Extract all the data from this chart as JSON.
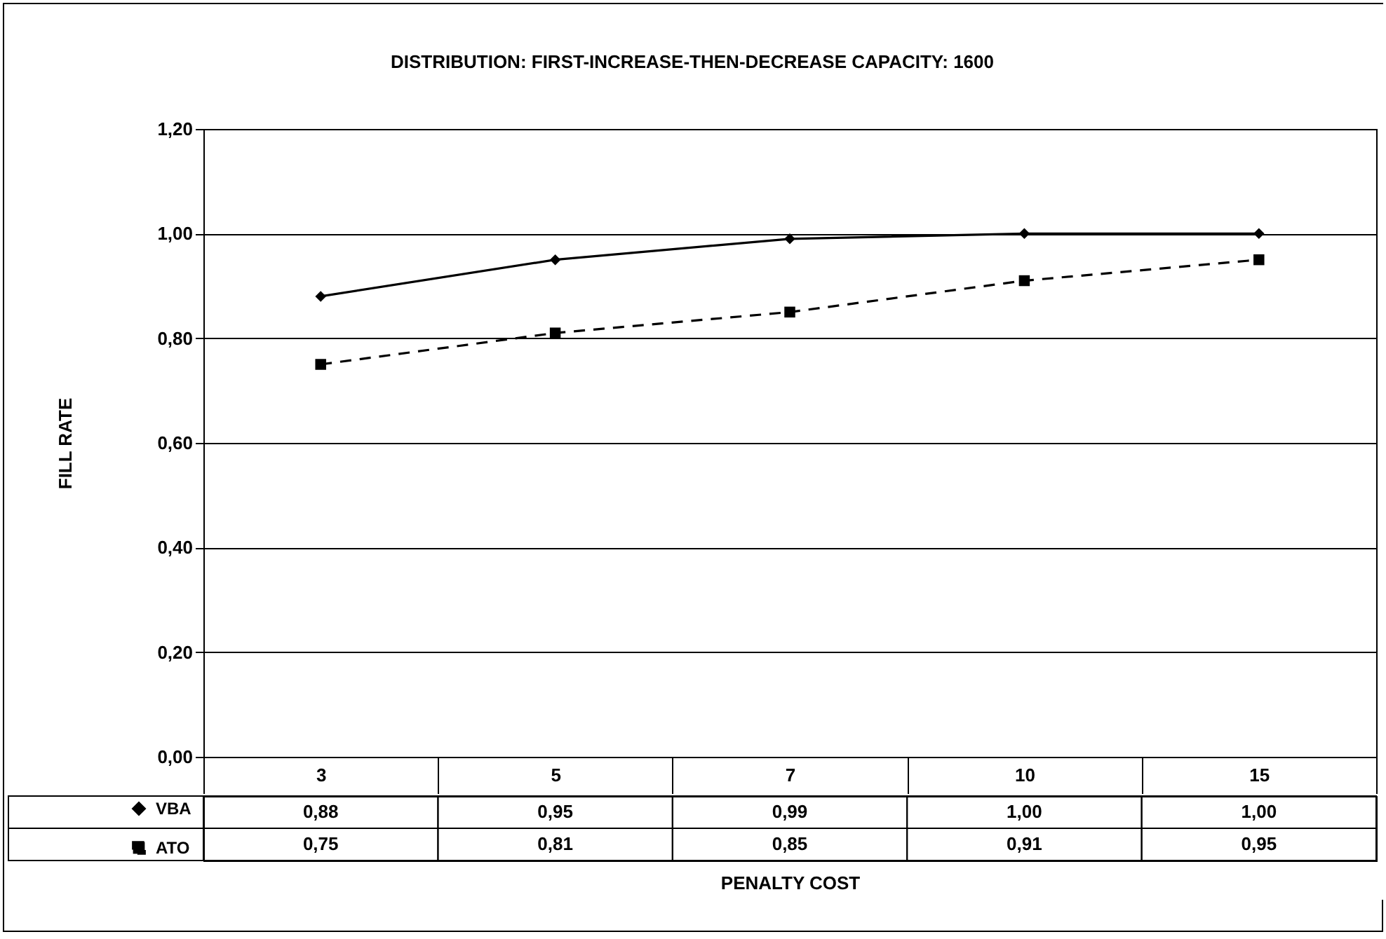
{
  "chart_data": {
    "type": "line",
    "title": "DISTRIBUTION: FIRST-INCREASE-THEN-DECREASE        CAPACITY: 1600",
    "xlabel": "PENALTY COST",
    "ylabel": "FILL RATE",
    "categories": [
      "3",
      "5",
      "7",
      "10",
      "15"
    ],
    "series": [
      {
        "name": "VBA",
        "color": "#000000",
        "marker": "diamond",
        "line_style": "solid",
        "values": [
          0.88,
          0.95,
          0.99,
          1.0,
          1.0
        ],
        "value_labels": [
          "0,88",
          "0,95",
          "0,99",
          "1,00",
          "1,00"
        ]
      },
      {
        "name": "ATO",
        "color": "#000000",
        "marker": "square",
        "line_style": "dashed",
        "values": [
          0.75,
          0.81,
          0.85,
          0.91,
          0.95
        ],
        "value_labels": [
          "0,75",
          "0,81",
          "0,85",
          "0,91",
          "0,95"
        ]
      }
    ],
    "ylim": [
      0,
      1.2
    ],
    "yticks": [
      {
        "value": 0,
        "label": "0,00"
      },
      {
        "value": 0.2,
        "label": "0,20"
      },
      {
        "value": 0.4,
        "label": "0,40"
      },
      {
        "value": 0.6,
        "label": "0,60"
      },
      {
        "value": 0.8,
        "label": "0,80"
      },
      {
        "value": 1.0,
        "label": "1,00"
      },
      {
        "value": 1.2,
        "label": "1,20"
      }
    ],
    "grid": "y",
    "legend": "bottom"
  }
}
